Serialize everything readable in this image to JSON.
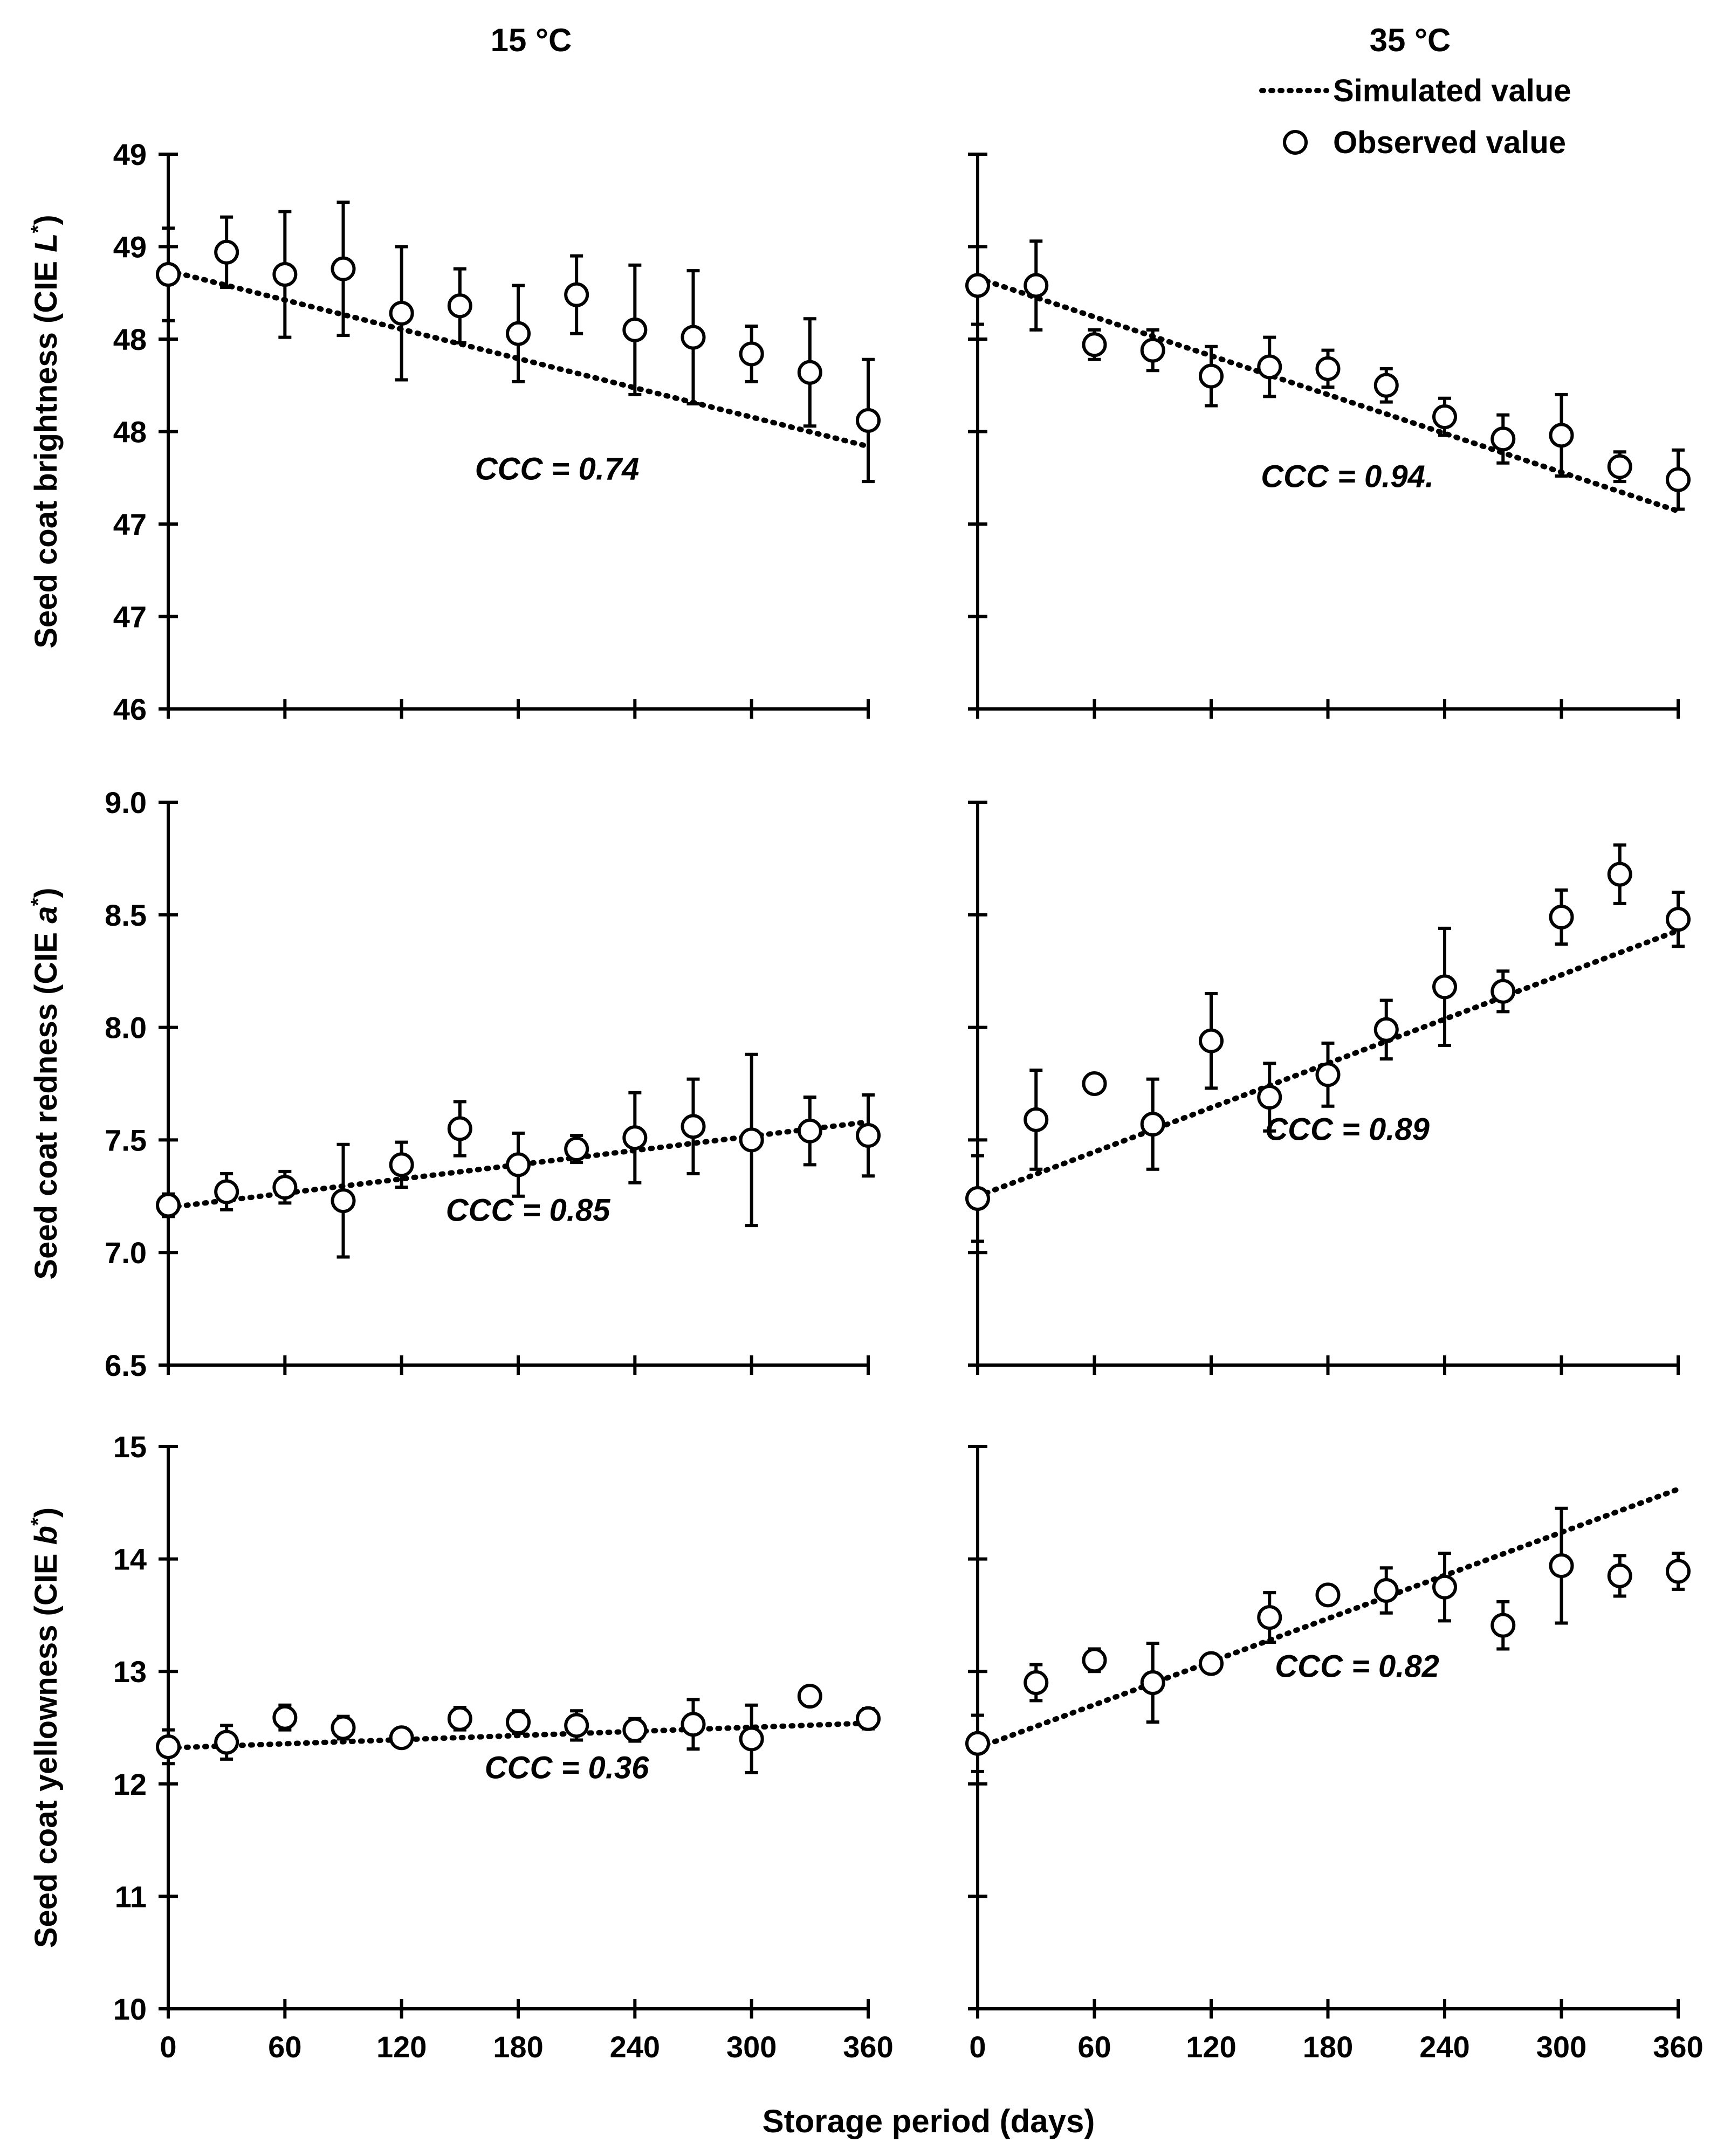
{
  "figure": {
    "x_label": "Storage period (days)",
    "legend": {
      "simulated": "Simulated value",
      "observed": "Observed value"
    },
    "colors": {
      "ink": "#000000",
      "background": "#ffffff"
    }
  },
  "chart_data": [
    {
      "id": "L-15",
      "type": "scatter",
      "title": "15 °C",
      "ylabel_prefix": "Seed coat brightness (CIE ",
      "ylabel_var": "L",
      "ylabel_suffix": ")",
      "xticks": [
        0,
        60,
        120,
        180,
        240,
        300,
        360
      ],
      "yticks": [
        46,
        46.5,
        47,
        47.5,
        48,
        48.5,
        49
      ],
      "ytick_labels": [
        "46",
        "47",
        "47",
        "48",
        "48",
        "49",
        "49"
      ],
      "ylim": [
        46,
        49
      ],
      "xlim": [
        0,
        360
      ],
      "x": [
        0,
        30,
        60,
        90,
        120,
        150,
        180,
        210,
        240,
        270,
        300,
        330,
        360
      ],
      "observed": [
        48.35,
        48.47,
        48.35,
        48.38,
        48.14,
        48.18,
        48.03,
        48.24,
        48.05,
        48.01,
        47.92,
        47.82,
        47.56
      ],
      "error": [
        0.25,
        0.19,
        0.34,
        0.36,
        0.36,
        0.2,
        0.26,
        0.21,
        0.35,
        0.36,
        0.15,
        0.29,
        0.33
      ],
      "simulated": {
        "x": [
          0,
          360
        ],
        "y": [
          48.37,
          47.42
        ]
      },
      "ccc_label": "CCC = 0.74",
      "ccc_at": {
        "x": 200,
        "y": 47.24
      }
    },
    {
      "id": "L-35",
      "type": "scatter",
      "title": "35 °C",
      "xticks": [
        0,
        60,
        120,
        180,
        240,
        300,
        360
      ],
      "yticks": [
        46,
        46.5,
        47,
        47.5,
        48,
        48.5,
        49
      ],
      "ytick_labels": [],
      "ylim": [
        46,
        49
      ],
      "xlim": [
        0,
        360
      ],
      "x": [
        0,
        30,
        60,
        90,
        120,
        150,
        180,
        210,
        240,
        270,
        300,
        330,
        360
      ],
      "observed": [
        48.29,
        48.29,
        47.97,
        47.94,
        47.8,
        47.85,
        47.84,
        47.75,
        47.58,
        47.46,
        47.48,
        47.31,
        47.24
      ],
      "error": [
        0.21,
        0.24,
        0.08,
        0.11,
        0.16,
        0.16,
        0.1,
        0.09,
        0.1,
        0.13,
        0.22,
        0.08,
        0.16
      ],
      "simulated": {
        "x": [
          0,
          360
        ],
        "y": [
          48.33,
          47.07
        ]
      },
      "ccc_label": "CCC = 0.94.",
      "ccc_at": {
        "x": 190,
        "y": 47.2
      }
    },
    {
      "id": "a-15",
      "type": "scatter",
      "ylabel_prefix": "Seed coat redness (CIE ",
      "ylabel_var": "a",
      "ylabel_suffix": ")",
      "xticks": [
        0,
        60,
        120,
        180,
        240,
        300,
        360
      ],
      "yticks": [
        6.5,
        7.0,
        7.5,
        8.0,
        8.5,
        9.0
      ],
      "ytick_labels": [
        "6.5",
        "7.0",
        "7.5",
        "8.0",
        "8.5",
        "9.0"
      ],
      "ylim": [
        6.5,
        9.0
      ],
      "xlim": [
        0,
        360
      ],
      "x": [
        0,
        30,
        60,
        90,
        120,
        150,
        180,
        210,
        240,
        270,
        300,
        330,
        360
      ],
      "observed": [
        7.21,
        7.27,
        7.29,
        7.23,
        7.39,
        7.55,
        7.39,
        7.46,
        7.51,
        7.56,
        7.5,
        7.54,
        7.52
      ],
      "error": [
        0.05,
        0.08,
        0.07,
        0.25,
        0.1,
        0.12,
        0.14,
        0.06,
        0.2,
        0.21,
        0.38,
        0.15,
        0.18
      ],
      "simulated": {
        "x": [
          0,
          360
        ],
        "y": [
          7.2,
          7.58
        ]
      },
      "ccc_label": "CCC = 0.85",
      "ccc_at": {
        "x": 185,
        "y": 7.14
      }
    },
    {
      "id": "a-35",
      "type": "scatter",
      "xticks": [
        0,
        60,
        120,
        180,
        240,
        300,
        360
      ],
      "yticks": [
        6.5,
        7.0,
        7.5,
        8.0,
        8.5,
        9.0
      ],
      "ytick_labels": [],
      "ylim": [
        6.5,
        9.0
      ],
      "xlim": [
        0,
        360
      ],
      "x": [
        0,
        30,
        60,
        90,
        150,
        180,
        210,
        240,
        270,
        300,
        330,
        360
      ],
      "observed": [
        7.24,
        7.59,
        7.75,
        7.57,
        7.69,
        7.79,
        7.99,
        8.18,
        8.16,
        8.49,
        8.68,
        8.48
      ],
      "error": [
        0.19,
        0.22,
        0.03,
        0.2,
        0.15,
        0.14,
        0.13,
        0.26,
        0.09,
        0.12,
        0.13,
        0.12
      ],
      "single_points": [
        {
          "x": 120,
          "y": 7.94,
          "error": 0.21
        }
      ],
      "simulated": {
        "x": [
          0,
          360
        ],
        "y": [
          7.25,
          8.43
        ]
      },
      "ccc_label": "CCC = 0.89",
      "ccc_at": {
        "x": 190,
        "y": 7.5
      }
    },
    {
      "id": "b-15",
      "type": "scatter",
      "ylabel_prefix": "Seed coat yellowness (CIE ",
      "ylabel_var": "b",
      "ylabel_suffix": ")",
      "xticks": [
        0,
        60,
        120,
        180,
        240,
        300,
        360
      ],
      "xtick_labels": [
        "0",
        "60",
        "120",
        "180",
        "240",
        "300",
        "360"
      ],
      "yticks": [
        10,
        11,
        12,
        13,
        14,
        15
      ],
      "ytick_labels": [
        "10",
        "11",
        "12",
        "13",
        "14",
        "15"
      ],
      "ylim": [
        10,
        15
      ],
      "xlim": [
        0,
        360
      ],
      "x": [
        0,
        30,
        60,
        90,
        120,
        150,
        180,
        210,
        240,
        270,
        300,
        330,
        360
      ],
      "observed": [
        12.33,
        12.37,
        12.59,
        12.5,
        12.41,
        12.58,
        12.55,
        12.52,
        12.48,
        12.53,
        12.4,
        12.78,
        12.58
      ],
      "error": [
        0.15,
        0.15,
        0.11,
        0.1,
        0.07,
        0.1,
        0.1,
        0.13,
        0.1,
        0.22,
        0.3,
        0.07,
        0.09
      ],
      "simulated": {
        "x": [
          0,
          360
        ],
        "y": [
          12.32,
          12.54
        ]
      },
      "ccc_label": "CCC = 0.36",
      "ccc_at": {
        "x": 205,
        "y": 12.05
      }
    },
    {
      "id": "b-35",
      "type": "scatter",
      "xticks": [
        0,
        60,
        120,
        180,
        240,
        300,
        360
      ],
      "xtick_labels": [
        "0",
        "60",
        "120",
        "180",
        "240",
        "300",
        "360"
      ],
      "yticks": [
        10,
        11,
        12,
        13,
        14,
        15
      ],
      "ytick_labels": [],
      "ylim": [
        10,
        15
      ],
      "xlim": [
        0,
        360
      ],
      "x": [
        0,
        30,
        60,
        90,
        120,
        150,
        180,
        210,
        240,
        270,
        300,
        330,
        360
      ],
      "observed": [
        12.36,
        12.9,
        13.1,
        12.9,
        13.07,
        13.48,
        13.68,
        13.72,
        13.75,
        13.41,
        13.94,
        13.85,
        13.89
      ],
      "error": [
        0.25,
        0.16,
        0.1,
        0.35,
        0.06,
        0.22,
        0.06,
        0.2,
        0.3,
        0.21,
        0.51,
        0.18,
        0.16
      ],
      "simulated": {
        "x": [
          0,
          360
        ],
        "y": [
          12.32,
          14.62
        ]
      },
      "ccc_label": "CCC  = 0.82",
      "ccc_at": {
        "x": 195,
        "y": 12.95
      }
    }
  ]
}
